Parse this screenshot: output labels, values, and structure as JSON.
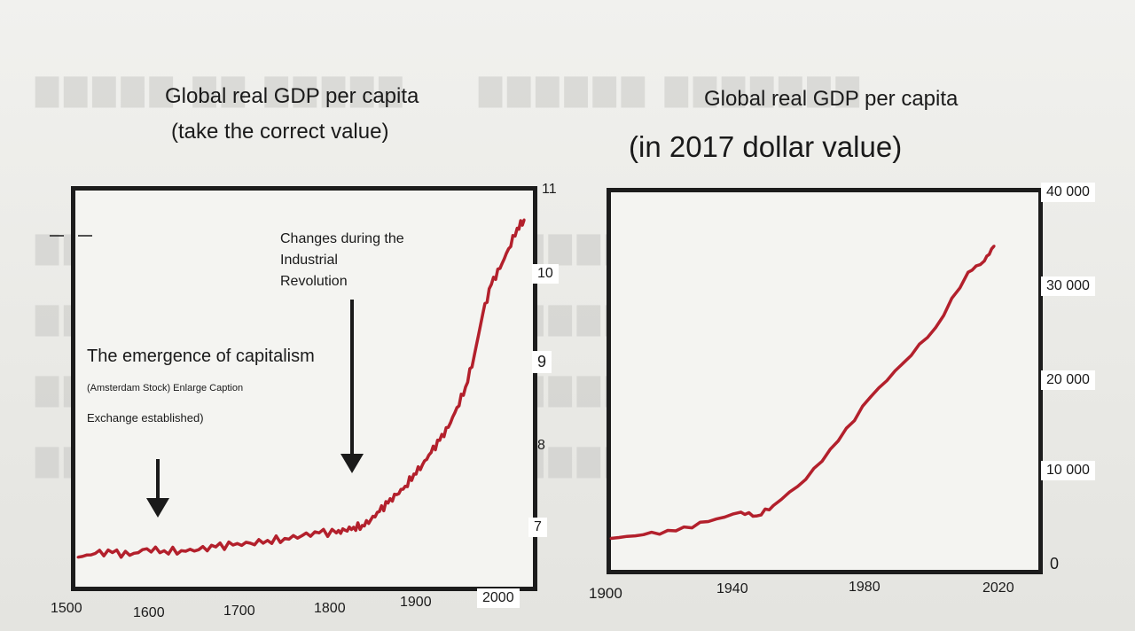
{
  "charts": [
    {
      "title_line1": "Global real GDP per capita",
      "title_line2": "(take the correct value)",
      "annotations": {
        "capitalism": "The emergence of capitalism",
        "amsterdam": "(Amsterdam Stock) Enlarge Caption",
        "exchange": "Exchange established)",
        "ind_line1": "Changes during the",
        "ind_line2": "Industrial",
        "ind_line3": "Revolution"
      },
      "xticks": [
        "1500",
        "1600",
        "1700",
        "1800",
        "1900",
        "2000"
      ],
      "yticks": [
        "11",
        "10",
        "9",
        "8",
        "7"
      ]
    },
    {
      "title_line1": "Global real GDP per capita",
      "title_line2": "(in 2017 dollar value)",
      "xticks": [
        "1900",
        "1940",
        "1980",
        "2020"
      ],
      "yticks": [
        "40 000",
        "30 000",
        "20 000",
        "10 000",
        "0"
      ]
    }
  ],
  "chart_data": [
    {
      "type": "line",
      "title": "Global real GDP per capita (take the correct value)",
      "scale": "log (natural log values)",
      "color": "#b3202c",
      "x_range": [
        1500,
        2020
      ],
      "y_range": [
        6.8,
        11
      ],
      "series": [
        {
          "x": [
            1500,
            1520,
            1540,
            1560,
            1580,
            1600,
            1620,
            1640,
            1660,
            1680,
            1700,
            1720,
            1740,
            1760,
            1780,
            1800,
            1810,
            1820,
            1830,
            1840,
            1850,
            1860,
            1870,
            1880,
            1890,
            1900,
            1910,
            1920,
            1930,
            1940,
            1950,
            1960,
            1970,
            1980,
            1990,
            2000,
            2010,
            2018
          ],
          "y": [
            7.03,
            7.07,
            7.08,
            7.05,
            7.12,
            7.1,
            7.1,
            7.11,
            7.14,
            7.16,
            7.18,
            7.21,
            7.23,
            7.26,
            7.29,
            7.29,
            7.32,
            7.35,
            7.37,
            7.43,
            7.52,
            7.61,
            7.7,
            7.79,
            7.92,
            8.02,
            8.15,
            8.28,
            8.42,
            8.63,
            8.85,
            9.18,
            9.63,
            9.95,
            10.12,
            10.33,
            10.55,
            10.64
          ]
        }
      ]
    },
    {
      "type": "line",
      "title": "Global real GDP per capita (in 2017 dollar value)",
      "color": "#b3202c",
      "x_range": [
        1900,
        2030
      ],
      "y_range": [
        0,
        40000
      ],
      "series": [
        {
          "x": [
            1900,
            1910,
            1920,
            1930,
            1940,
            1945,
            1950,
            1960,
            1970,
            1980,
            1990,
            2000,
            2010,
            2015,
            2018
          ],
          "y": [
            2600,
            3000,
            3400,
            4400,
            5400,
            5000,
            6100,
            8900,
            13000,
            17700,
            21300,
            25100,
            31000,
            32200,
            33800
          ]
        }
      ]
    }
  ]
}
